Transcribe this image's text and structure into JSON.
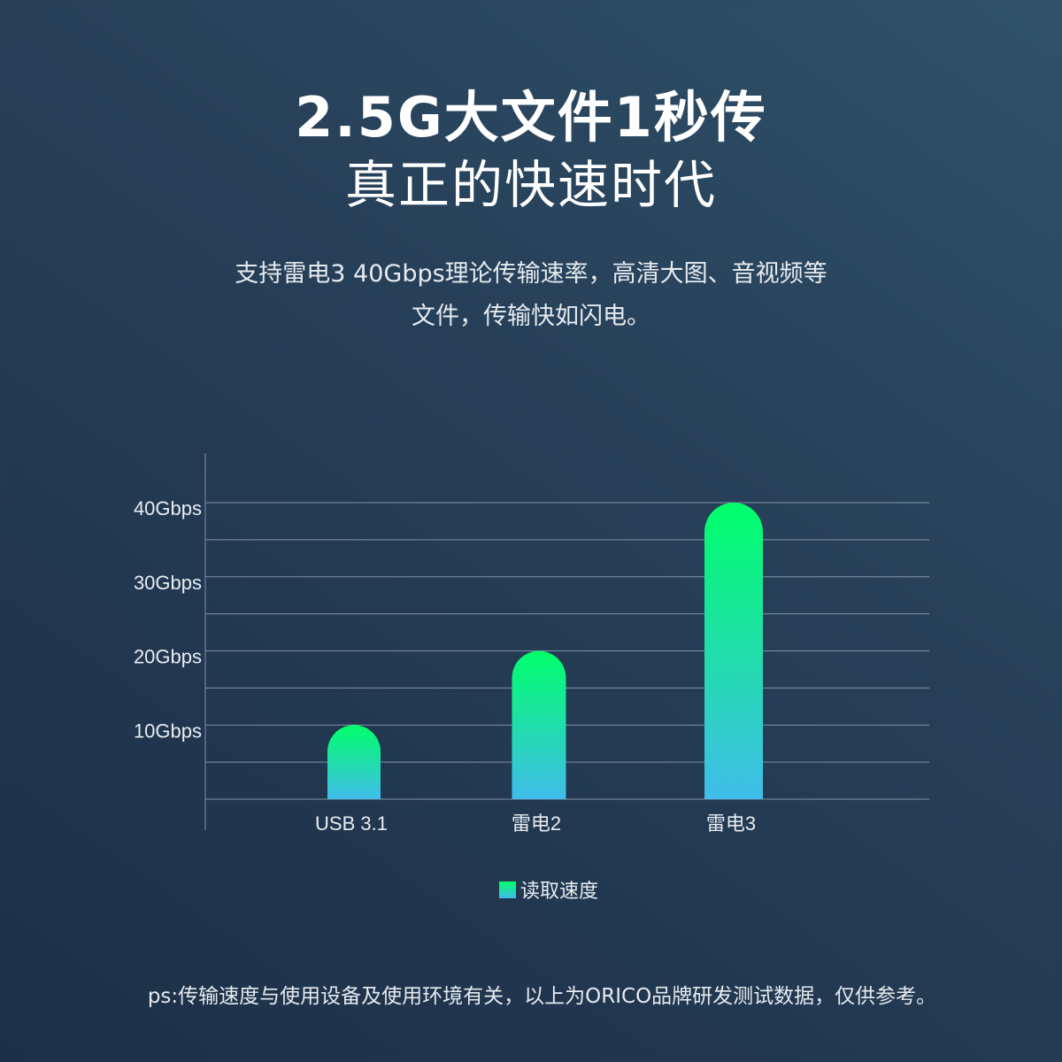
{
  "header": {
    "title_line1": "2.5G大文件1秒传",
    "title_line2": "真正的快速时代"
  },
  "description": {
    "line1": "支持雷电3 40Gbps理论传输速率，高清大图、音视频等",
    "line2": "文件，传输快如闪电。"
  },
  "chart_data": {
    "type": "bar",
    "categories": [
      "USB 3.1",
      "雷电2",
      "雷电3"
    ],
    "series": [
      {
        "name": "读取速度",
        "values": [
          10,
          20,
          40
        ]
      }
    ],
    "ylabel": "",
    "xlabel": "",
    "ylim": [
      0,
      40
    ],
    "yticks": [
      10,
      20,
      30,
      40
    ],
    "ytick_labels": [
      "10Gbps",
      "20Gbps",
      "30Gbps",
      "40Gbps"
    ],
    "grid": true,
    "legend": "bottom",
    "colors": {
      "bar_top": "#00ff6a",
      "bar_bottom": "#40bdea",
      "grid": "#7f93a6"
    }
  },
  "footnote": "ps:传输速度与使用设备及使用环境有关，以上为ORICO品牌研发测试数据，仅供参考。"
}
